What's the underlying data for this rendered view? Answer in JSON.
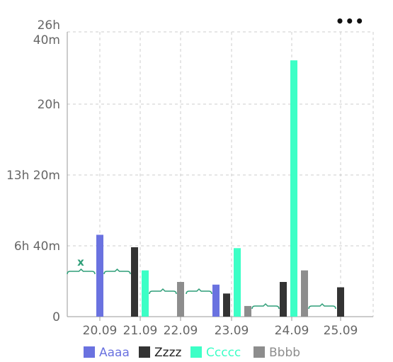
{
  "menu_icon": "more-horizontal-icon",
  "chart_data": {
    "type": "bar",
    "categories": [
      "20.09",
      "21.09",
      "22.09",
      "23.09",
      "24.09",
      "25.09"
    ],
    "y_ticks": [
      "0",
      "6h 40m",
      "13h 20m",
      "20h",
      "26h",
      "40m"
    ],
    "ylim_minutes": [
      0,
      1600
    ],
    "grid": true,
    "legend_position": "bottom",
    "series": [
      {
        "name": "Aaaa",
        "color": "#6a72e0",
        "values_minutes": [
          460,
          null,
          null,
          180,
          null,
          null
        ]
      },
      {
        "name": "Zzzz",
        "color": "#333333",
        "values_minutes": [
          null,
          390,
          null,
          130,
          195,
          165
        ]
      },
      {
        "name": "Ccccc",
        "color": "#3cffc6",
        "values_minutes": [
          null,
          260,
          null,
          385,
          1440,
          null
        ]
      },
      {
        "name": "Bbbb",
        "color": "#8d8d8d",
        "values_minutes": [
          null,
          null,
          195,
          60,
          260,
          null
        ]
      }
    ],
    "annotations": [
      {
        "text": "x",
        "color": "#2e9e78"
      }
    ]
  }
}
